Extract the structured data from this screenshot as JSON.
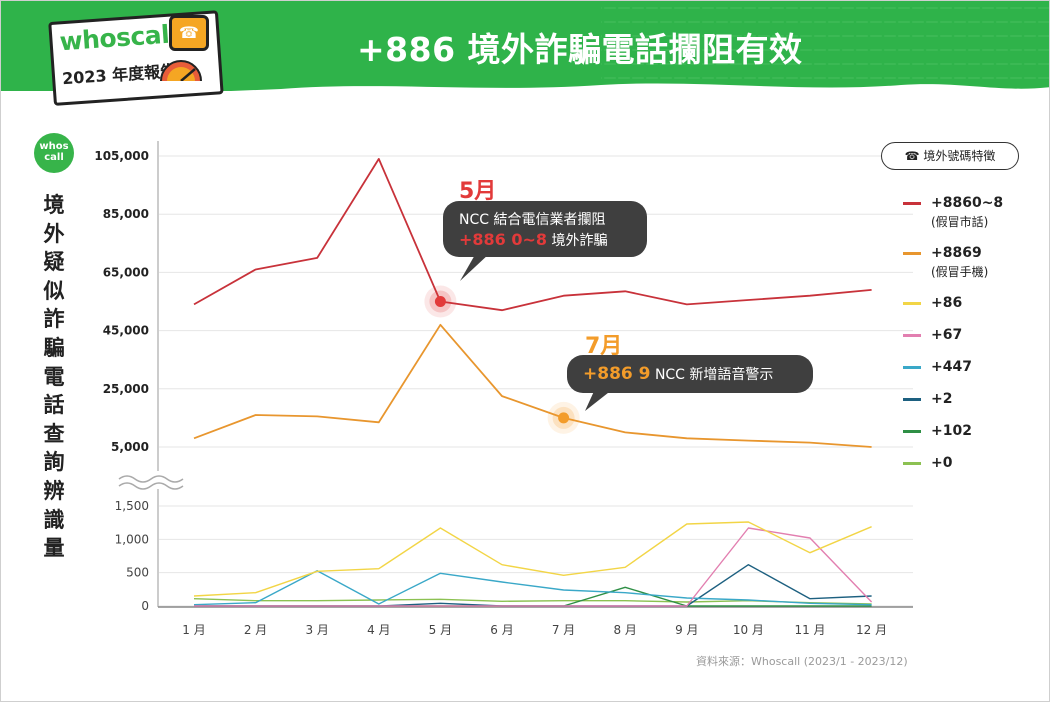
{
  "header": {
    "brand": "whoscall",
    "report": "2023 年度報告",
    "title": "+886 境外詐騙電話攔阻有效",
    "side_logo": "whos call"
  },
  "colors": {
    "brand_green": "#37b44a",
    "header_green": "#2fb34a",
    "series_8860_8": "#c8323a",
    "series_8869": "#e8962e",
    "series_86": "#f2d546",
    "series_67": "#e27fb0",
    "series_447": "#3aa8c8",
    "series_2": "#1d6080",
    "series_102": "#2e8f45",
    "series_0": "#8cc152"
  },
  "chart_data": {
    "type": "line",
    "ylabel": "境外疑似詐騙電話查詢辨識量",
    "categories": [
      "1 月",
      "2 月",
      "3 月",
      "4 月",
      "5 月",
      "6 月",
      "7 月",
      "8 月",
      "9 月",
      "10 月",
      "11 月",
      "12 月"
    ],
    "upper_axis": {
      "ylim": [
        5000,
        105000
      ],
      "ticks": [
        "105,000",
        "85,000",
        "65,000",
        "45,000",
        "25,000",
        "5,000"
      ]
    },
    "lower_axis": {
      "ylim": [
        0,
        1500
      ],
      "ticks": [
        "1,500",
        "1,000",
        "500",
        "0"
      ]
    },
    "legend_title": "境外號碼特徵",
    "legend_placement": "right",
    "series": [
      {
        "name": "+8860~8",
        "sub": "(假冒市話)",
        "color": "#c8323a",
        "axis": "upper",
        "values": [
          54000,
          66000,
          70000,
          104000,
          55000,
          52000,
          57000,
          58500,
          54000,
          55500,
          57000,
          59000
        ]
      },
      {
        "name": "+8869",
        "sub": "(假冒手機)",
        "color": "#e8962e",
        "axis": "upper",
        "values": [
          8000,
          16000,
          15500,
          13500,
          47000,
          22500,
          15000,
          10000,
          8000,
          7200,
          6500,
          5000
        ]
      },
      {
        "name": "+86",
        "sub": "",
        "color": "#f2d546",
        "axis": "lower",
        "values": [
          150,
          200,
          520,
          560,
          1170,
          620,
          460,
          580,
          1230,
          1260,
          800,
          1190
        ]
      },
      {
        "name": "+67",
        "sub": "",
        "color": "#e27fb0",
        "axis": "lower",
        "values": [
          0,
          0,
          0,
          0,
          0,
          0,
          0,
          0,
          0,
          1170,
          1020,
          60
        ]
      },
      {
        "name": "+447",
        "sub": "",
        "color": "#3aa8c8",
        "axis": "lower",
        "values": [
          20,
          50,
          530,
          30,
          490,
          360,
          240,
          200,
          120,
          90,
          40,
          20
        ]
      },
      {
        "name": "+2",
        "sub": "",
        "color": "#1d6080",
        "axis": "lower",
        "values": [
          0,
          0,
          0,
          0,
          40,
          0,
          0,
          0,
          0,
          620,
          110,
          150
        ]
      },
      {
        "name": "+102",
        "sub": "",
        "color": "#2e8f45",
        "axis": "lower",
        "values": [
          0,
          0,
          0,
          0,
          0,
          0,
          0,
          280,
          0,
          0,
          0,
          0
        ]
      },
      {
        "name": "+0",
        "sub": "",
        "color": "#8cc152",
        "axis": "lower",
        "values": [
          110,
          80,
          80,
          90,
          100,
          70,
          80,
          80,
          60,
          80,
          50,
          30
        ]
      }
    ],
    "annotations": [
      {
        "month_label": "5月",
        "color": "#e23a3a",
        "category_index": 4,
        "series_index": 0,
        "line1": "NCC 結合電信業者攔阻",
        "line2_highlight": "+886 0~8",
        "line2_rest": "境外詐騙"
      },
      {
        "month_label": "7月",
        "color": "#f39c2a",
        "category_index": 6,
        "series_index": 1,
        "line1_highlight": "+886 9",
        "line1_rest": "NCC 新增語音警示"
      }
    ],
    "source": "資料來源：Whoscall (2023/1 - 2023/12)"
  }
}
